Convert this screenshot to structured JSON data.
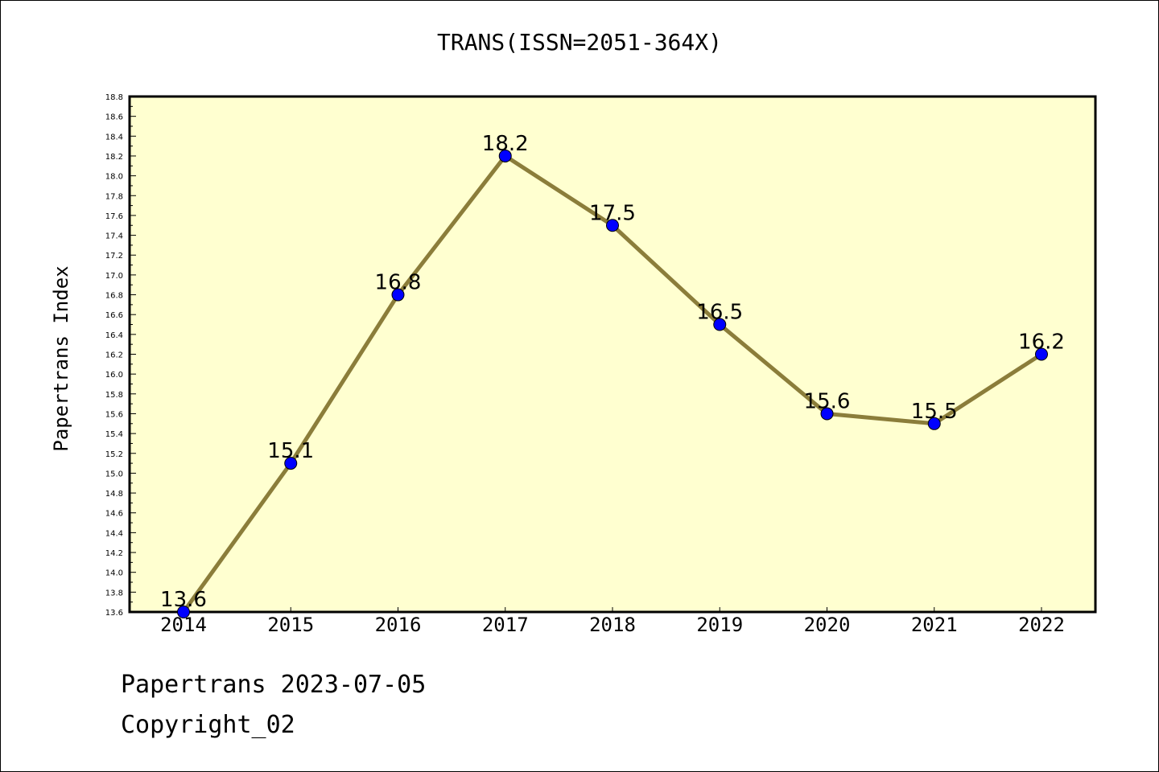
{
  "chart_data": {
    "type": "line",
    "title": "TRANS(ISSN=2051-364X)",
    "xlabel": "",
    "ylabel": "Papertrans Index",
    "categories": [
      "2014",
      "2015",
      "2016",
      "2017",
      "2018",
      "2019",
      "2020",
      "2021",
      "2022"
    ],
    "series": [
      {
        "values": [
          13.6,
          15.1,
          16.8,
          18.2,
          17.5,
          16.5,
          15.6,
          15.5,
          16.2
        ],
        "data_labels": [
          "13.6",
          "15.1",
          "16.8",
          "18.2",
          "17.5",
          "16.5",
          "15.6",
          "15.5",
          "16.2"
        ],
        "line_color": "#8b7d3a",
        "marker_color": "#0000ff"
      }
    ],
    "ylim": [
      13.6,
      18.8
    ],
    "yticks": [
      "13.6",
      "13.8",
      "14.0",
      "14.2",
      "14.4",
      "14.6",
      "14.8",
      "15.0",
      "15.2",
      "15.4",
      "15.6",
      "15.8",
      "16.0",
      "16.2",
      "16.4",
      "16.6",
      "16.8",
      "17.0",
      "17.2",
      "17.4",
      "17.6",
      "17.8",
      "18.0",
      "18.2",
      "18.4",
      "18.6",
      "18.8"
    ],
    "grid": false,
    "plot_background": "#ffffd0"
  },
  "footer": {
    "line1": "Papertrans 2023-07-05",
    "line2": "Copyright_02"
  }
}
